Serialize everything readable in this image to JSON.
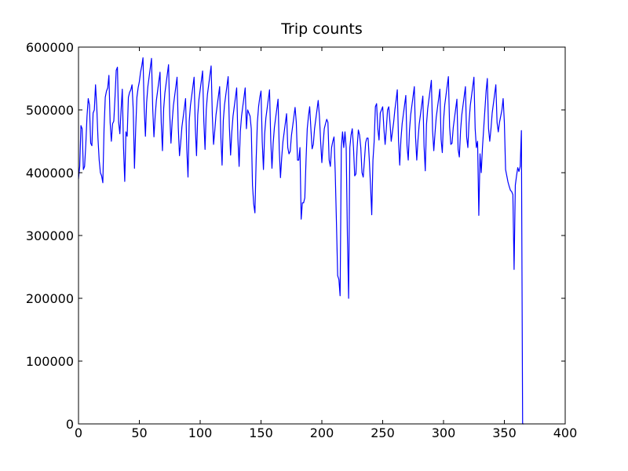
{
  "chart_data": {
    "type": "line",
    "title": "Trip counts",
    "x": [
      0,
      1,
      2,
      3,
      4,
      5,
      6,
      7,
      8,
      9,
      10,
      11,
      12,
      13,
      14,
      15,
      16,
      17,
      18,
      19,
      20,
      21,
      22,
      23,
      24,
      25,
      26,
      27,
      28,
      29,
      30,
      31,
      32,
      33,
      34,
      35,
      36,
      37,
      38,
      39,
      40,
      41,
      42,
      43,
      44,
      45,
      46,
      47,
      48,
      49,
      50,
      51,
      52,
      53,
      54,
      55,
      56,
      57,
      58,
      59,
      60,
      61,
      62,
      63,
      64,
      65,
      66,
      67,
      68,
      69,
      70,
      71,
      72,
      73,
      74,
      75,
      76,
      77,
      78,
      79,
      80,
      81,
      82,
      83,
      84,
      85,
      86,
      87,
      88,
      89,
      90,
      91,
      92,
      93,
      94,
      95,
      96,
      97,
      98,
      99,
      100,
      101,
      102,
      103,
      104,
      105,
      106,
      107,
      108,
      109,
      110,
      111,
      112,
      113,
      114,
      115,
      116,
      117,
      118,
      119,
      120,
      121,
      122,
      123,
      124,
      125,
      126,
      127,
      128,
      129,
      130,
      131,
      132,
      133,
      134,
      135,
      136,
      137,
      138,
      139,
      140,
      141,
      142,
      143,
      144,
      145,
      146,
      147,
      148,
      149,
      150,
      151,
      152,
      153,
      154,
      155,
      156,
      157,
      158,
      159,
      160,
      161,
      162,
      163,
      164,
      165,
      166,
      167,
      168,
      169,
      170,
      171,
      172,
      173,
      174,
      175,
      176,
      177,
      178,
      179,
      180,
      181,
      182,
      183,
      184,
      185,
      186,
      187,
      188,
      189,
      190,
      191,
      192,
      193,
      194,
      195,
      196,
      197,
      198,
      199,
      200,
      201,
      202,
      203,
      204,
      205,
      206,
      207,
      208,
      209,
      210,
      211,
      212,
      213,
      214,
      215,
      216,
      217,
      218,
      219,
      220,
      221,
      222,
      223,
      224,
      225,
      226,
      227,
      228,
      229,
      230,
      231,
      232,
      233,
      234,
      235,
      236,
      237,
      238,
      239,
      240,
      241,
      242,
      243,
      244,
      245,
      246,
      247,
      248,
      249,
      250,
      251,
      252,
      253,
      254,
      255,
      256,
      257,
      258,
      259,
      260,
      261,
      262,
      263,
      264,
      265,
      266,
      267,
      268,
      269,
      270,
      271,
      272,
      273,
      274,
      275,
      276,
      277,
      278,
      279,
      280,
      281,
      282,
      283,
      284,
      285,
      286,
      287,
      288,
      289,
      290,
      291,
      292,
      293,
      294,
      295,
      296,
      297,
      298,
      299,
      300,
      301,
      302,
      303,
      304,
      305,
      306,
      307,
      308,
      309,
      310,
      311,
      312,
      313,
      314,
      315,
      316,
      317,
      318,
      319,
      320,
      321,
      322,
      323,
      324,
      325,
      326,
      327,
      328,
      329,
      330,
      331,
      332,
      333,
      334,
      335,
      336,
      337,
      338,
      339,
      340,
      341,
      342,
      343,
      344,
      345,
      346,
      347,
      348,
      349,
      350,
      351,
      352,
      353,
      354,
      355,
      356,
      357,
      358,
      359,
      360,
      361,
      362,
      363,
      364,
      365,
      366
    ],
    "series": [
      {
        "color": "#0000ff",
        "values": [
          390000,
          410000,
          475000,
          470000,
          405000,
          410000,
          445000,
          490000,
          518000,
          508000,
          447000,
          443000,
          495000,
          500000,
          540000,
          505000,
          455000,
          420000,
          400000,
          395000,
          384000,
          470000,
          520000,
          530000,
          535000,
          555000,
          480000,
          450000,
          478000,
          482000,
          520000,
          563000,
          568000,
          480000,
          462000,
          500000,
          533000,
          440000,
          386000,
          465000,
          458000,
          520000,
          528000,
          532000,
          540000,
          500000,
          407000,
          470000,
          520000,
          535000,
          545000,
          560000,
          570000,
          583000,
          503000,
          458000,
          512000,
          537000,
          552000,
          567000,
          582000,
          502000,
          457000,
          490000,
          515000,
          530000,
          545000,
          560000,
          480000,
          435000,
          502000,
          527000,
          542000,
          557000,
          572000,
          492000,
          447000,
          482000,
          507000,
          522000,
          537000,
          552000,
          472000,
          427000,
          448000,
          473000,
          488000,
          503000,
          518000,
          438000,
          393000,
          482000,
          507000,
          522000,
          537000,
          552000,
          472000,
          427000,
          492000,
          517000,
          532000,
          547000,
          562000,
          482000,
          437000,
          500000,
          525000,
          540000,
          555000,
          570000,
          490000,
          445000,
          467000,
          492000,
          507000,
          522000,
          537000,
          457000,
          412000,
          483000,
          508000,
          523000,
          538000,
          553000,
          473000,
          428000,
          465000,
          490000,
          505000,
          520000,
          535000,
          455000,
          410000,
          465000,
          490000,
          505000,
          520000,
          535000,
          470000,
          500000,
          495000,
          490000,
          470000,
          380000,
          350000,
          336000,
          420000,
          480000,
          505000,
          520000,
          530000,
          450000,
          405000,
          462000,
          487000,
          502000,
          517000,
          532000,
          452000,
          407000,
          447000,
          472000,
          487000,
          502000,
          517000,
          437000,
          392000,
          424000,
          449000,
          464000,
          479000,
          494000,
          440000,
          430000,
          434000,
          459000,
          474000,
          489000,
          504000,
          480000,
          420000,
          420000,
          440000,
          326000,
          352000,
          352000,
          360000,
          420000,
          470000,
          490000,
          505000,
          470000,
          438000,
          445000,
          470000,
          485000,
          500000,
          515000,
          490000,
          450000,
          416000,
          445000,
          470000,
          478000,
          485000,
          480000,
          420000,
          410000,
          440000,
          450000,
          457000,
          400000,
          320000,
          236000,
          230000,
          204000,
          440000,
          465000,
          440000,
          465000,
          440000,
          300000,
          200000,
          440000,
          460000,
          470000,
          440000,
          395000,
          398000,
          440000,
          468000,
          460000,
          440000,
          400000,
          393000,
          420000,
          448000,
          455000,
          455000,
          420000,
          380000,
          333000,
          420000,
          450000,
          505000,
          510000,
          470000,
          452000,
          495000,
          500000,
          505000,
          470000,
          445000,
          470000,
          500000,
          505000,
          480000,
          450000,
          465000,
          480000,
          500000,
          515000,
          532000,
          452000,
          412000,
          453000,
          478000,
          493000,
          508000,
          523000,
          443000,
          420000,
          467000,
          492000,
          507000,
          522000,
          537000,
          457000,
          420000,
          452000,
          477000,
          492000,
          507000,
          522000,
          442000,
          403000,
          477000,
          502000,
          517000,
          532000,
          547000,
          467000,
          435000,
          463000,
          488000,
          503000,
          518000,
          533000,
          453000,
          432000,
          483000,
          508000,
          523000,
          538000,
          553000,
          473000,
          445000,
          447000,
          472000,
          487000,
          502000,
          517000,
          437000,
          425000,
          467000,
          492000,
          507000,
          522000,
          537000,
          457000,
          440000,
          482000,
          507000,
          522000,
          537000,
          552000,
          470000,
          440000,
          450000,
          332000,
          430000,
          400000,
          440000,
          470000,
          500000,
          530000,
          550000,
          470000,
          450000,
          470000,
          495000,
          510000,
          525000,
          540000,
          480000,
          465000,
          480000,
          490000,
          500000,
          518000,
          480000,
          405000,
          395000,
          385000,
          378000,
          372000,
          370000,
          365000,
          246000,
          380000,
          395000,
          408000,
          402000,
          410000,
          467000,
          0,
          0
        ]
      }
    ],
    "xlim": [
      0,
      400
    ],
    "ylim": [
      0,
      600000
    ],
    "xticks": [
      0,
      50,
      100,
      150,
      200,
      250,
      300,
      350,
      400
    ],
    "yticks": [
      0,
      100000,
      200000,
      300000,
      400000,
      500000,
      600000
    ],
    "grid": false
  }
}
